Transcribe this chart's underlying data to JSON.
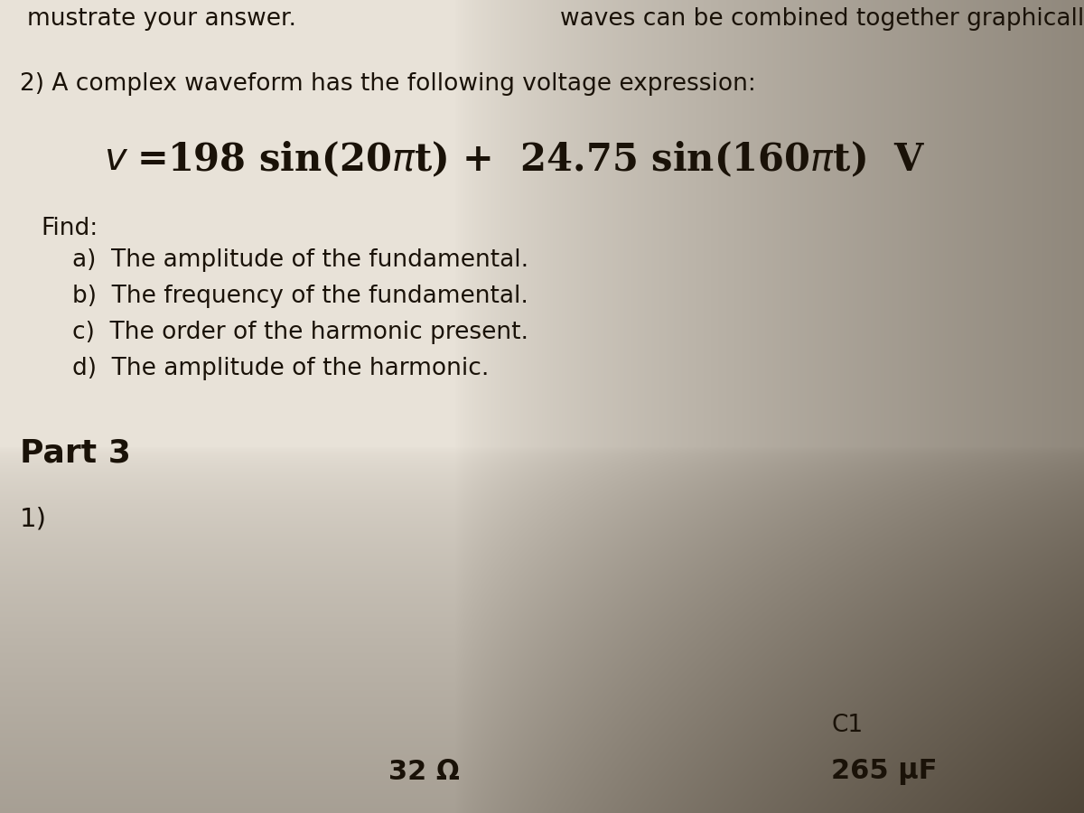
{
  "bg_light": "#e8e2d8",
  "bg_mid": "#d4cec4",
  "bg_dark_right": "#a89e90",
  "bg_dark_bottom": "#7a7060",
  "text_color": "#1a1208",
  "top_line_left": "mustrate your answer.",
  "top_line_right": "waves can be combined together graphically",
  "question": "2) A complex waveform has the following voltage expression:",
  "find_label": "Find:",
  "find_items": [
    "a)  The amplitude of the fundamental.",
    "b)  The frequency of the fundamental.",
    "c)  The order of the harmonic present.",
    "d)  The amplitude of the harmonic."
  ],
  "part3_label": "Part 3",
  "item_1": "1)",
  "bottom_center": "32 Ω",
  "bottom_right_label": "C1",
  "bottom_right_value": "265 μF",
  "eq_v": "v",
  "eq_main": " = 198 sin(20πt) +  24.75 sin(160πt) V"
}
